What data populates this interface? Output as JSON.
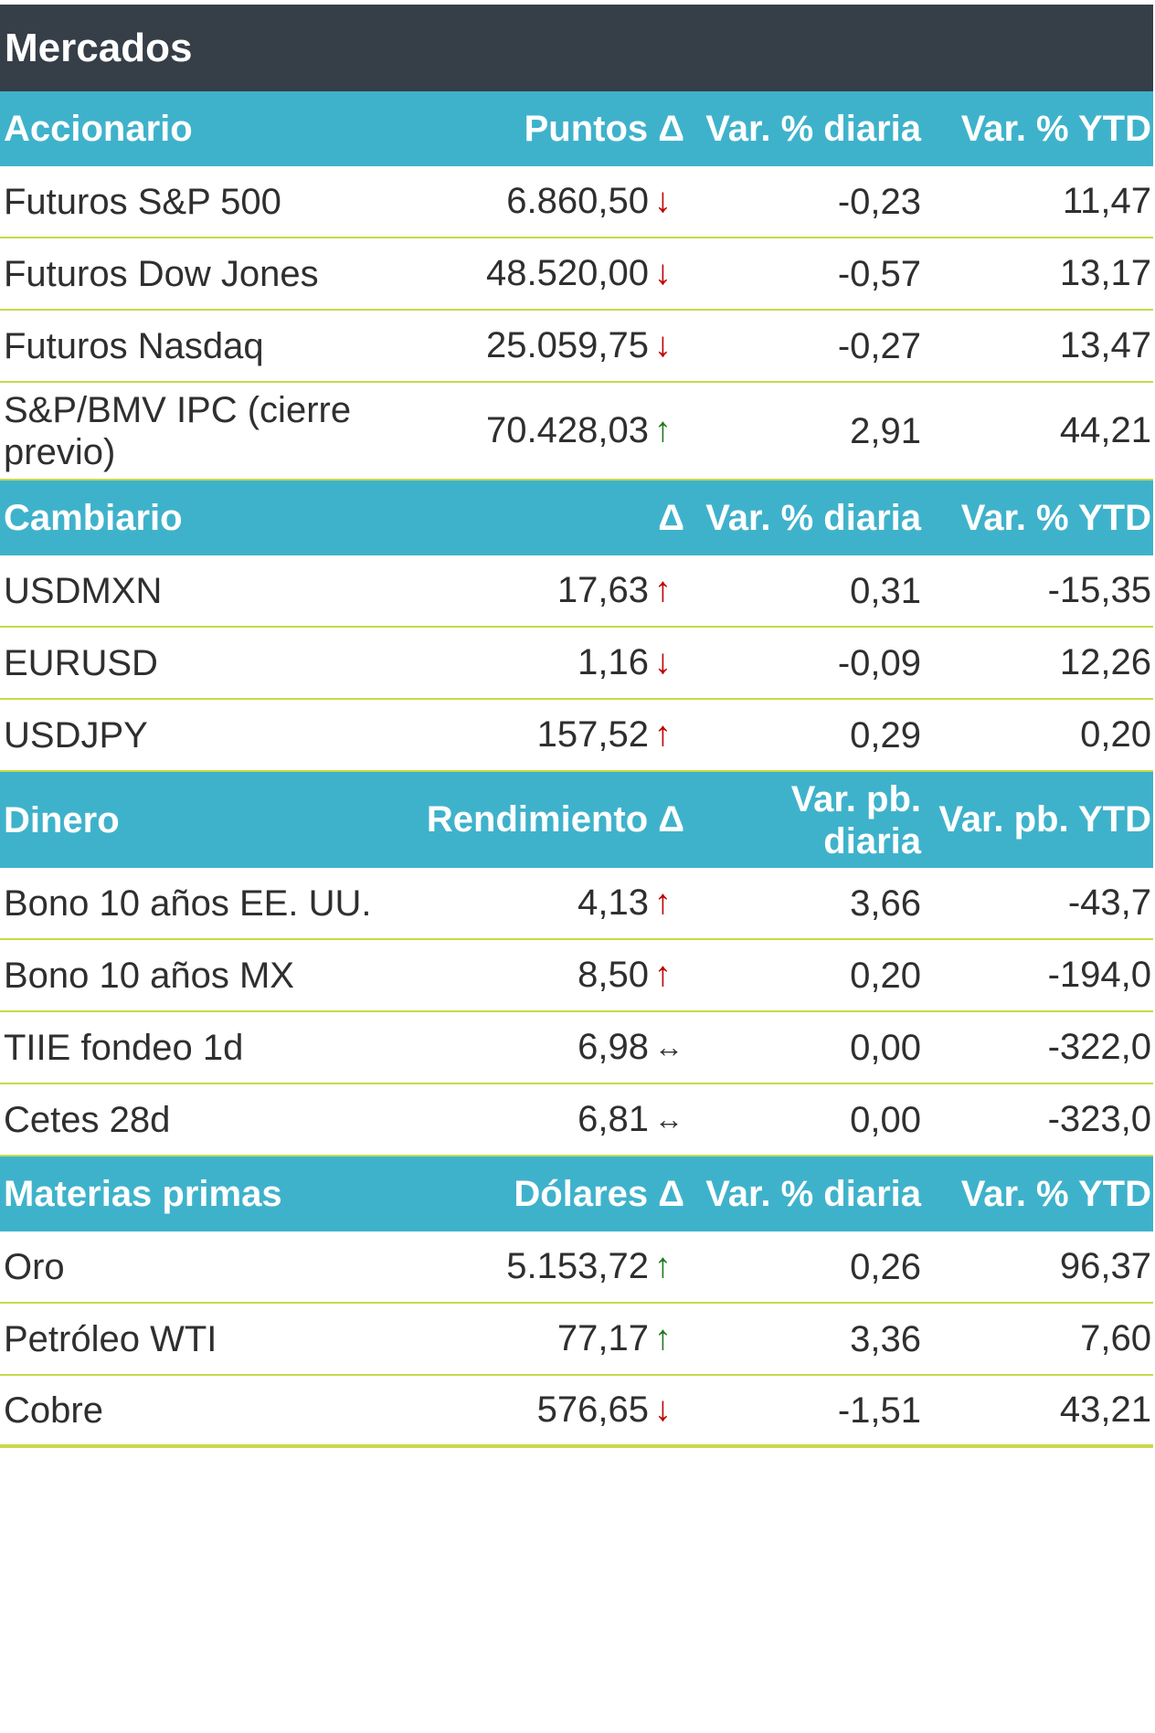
{
  "title": "Mercados",
  "colors": {
    "title_bg": "#363e48",
    "header_bg": "#3fb2cb",
    "divider": "#c8d94a",
    "arrow_green": "#1f7a1f",
    "arrow_red": "#c00000"
  },
  "sections": [
    {
      "headers": [
        "Accionario",
        "Puntos Δ",
        "Var. % diaria",
        "Var. % YTD"
      ],
      "rows": [
        {
          "name": "Futuros S&P 500",
          "value": "6.860,50",
          "arrow": "↓",
          "arrow_icon": "arrow-down-red-icon",
          "daily": "-0,23",
          "ytd": "11,47"
        },
        {
          "name": "Futuros Dow Jones",
          "value": "48.520,00",
          "arrow": "↓",
          "arrow_icon": "arrow-down-red-icon",
          "daily": "-0,57",
          "ytd": "13,17"
        },
        {
          "name": "Futuros Nasdaq",
          "value": "25.059,75",
          "arrow": "↓",
          "arrow_icon": "arrow-down-red-icon",
          "daily": "-0,27",
          "ytd": "13,47"
        },
        {
          "name": "S&P/BMV IPC (cierre previo)",
          "value": "70.428,03",
          "arrow": "↑",
          "arrow_icon": "arrow-up-green-icon",
          "daily": "2,91",
          "ytd": "44,21"
        }
      ]
    },
    {
      "headers": [
        "Cambiario",
        "Δ",
        "Var. % diaria",
        "Var. % YTD"
      ],
      "rows": [
        {
          "name": "USDMXN",
          "value": "17,63",
          "arrow": "↑",
          "arrow_icon": "arrow-up-red-icon",
          "daily": "0,31",
          "ytd": "-15,35"
        },
        {
          "name": "EURUSD",
          "value": "1,16",
          "arrow": "↓",
          "arrow_icon": "arrow-down-red-icon",
          "daily": "-0,09",
          "ytd": "12,26"
        },
        {
          "name": "USDJPY",
          "value": "157,52",
          "arrow": "↑",
          "arrow_icon": "arrow-up-red-icon",
          "daily": "0,29",
          "ytd": "0,20"
        }
      ]
    },
    {
      "headers": [
        "Dinero",
        "Rendimiento Δ",
        "Var. pb. diaria",
        "Var. pb. YTD"
      ],
      "rows": [
        {
          "name": "Bono 10 años EE. UU.",
          "value": "4,13",
          "arrow": "↑",
          "arrow_icon": "arrow-up-red-icon",
          "daily": "3,66",
          "ytd": "-43,7"
        },
        {
          "name": "Bono 10 años MX",
          "value": "8,50",
          "arrow": "↑",
          "arrow_icon": "arrow-up-red-icon",
          "daily": "0,20",
          "ytd": "-194,0"
        },
        {
          "name": "TIIE fondeo 1d",
          "value": "6,98",
          "arrow": "↔",
          "arrow_icon": "arrow-flat-icon",
          "daily": "0,00",
          "ytd": "-322,0"
        },
        {
          "name": "Cetes 28d",
          "value": "6,81",
          "arrow": "↔",
          "arrow_icon": "arrow-flat-icon",
          "daily": "0,00",
          "ytd": "-323,0"
        }
      ]
    },
    {
      "headers": [
        "Materias primas",
        "Dólares Δ",
        "Var. % diaria",
        "Var. % YTD"
      ],
      "rows": [
        {
          "name": "Oro",
          "value": "5.153,72",
          "arrow": "↑",
          "arrow_icon": "arrow-up-green-icon",
          "daily": "0,26",
          "ytd": "96,37"
        },
        {
          "name": "Petróleo WTI",
          "value": "77,17",
          "arrow": "↑",
          "arrow_icon": "arrow-up-green-icon",
          "daily": "3,36",
          "ytd": "7,60"
        },
        {
          "name": "Cobre",
          "value": "576,65",
          "arrow": "↓",
          "arrow_icon": "arrow-down-red-icon",
          "daily": "-1,51",
          "ytd": "43,21"
        }
      ]
    }
  ]
}
